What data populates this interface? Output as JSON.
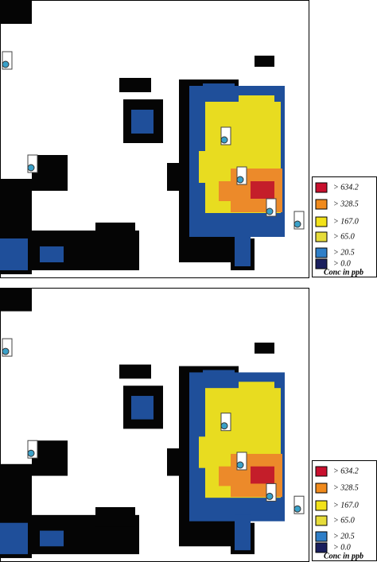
{
  "panels": [
    {
      "legend": {
        "items": [
          {
            "label": "> 634.2",
            "color": "#c8102e"
          },
          {
            "label": "> 328.5",
            "color": "#f08a1c"
          },
          {
            "label": "> 167.0",
            "color": "#f2e21a"
          },
          {
            "label": "> 65.0",
            "color": "#e6dc3a"
          },
          {
            "label": "> 20.5",
            "color": "#2f7fc8"
          },
          {
            "label": "> 0.0",
            "color": "#1a1f5e"
          }
        ],
        "caption": "Conc in ppb"
      }
    },
    {
      "legend": {
        "items": [
          {
            "label": "> 634.2",
            "color": "#c8102e"
          },
          {
            "label": "> 328.5",
            "color": "#f08a1c"
          },
          {
            "label": "> 167.0",
            "color": "#f2e21a"
          },
          {
            "label": "> 65.0",
            "color": "#e6dc3a"
          },
          {
            "label": "> 20.5",
            "color": "#2f7fc8"
          },
          {
            "label": "> 0.0",
            "color": "#1a1f5e"
          }
        ],
        "caption": "Conc in ppb"
      }
    }
  ]
}
